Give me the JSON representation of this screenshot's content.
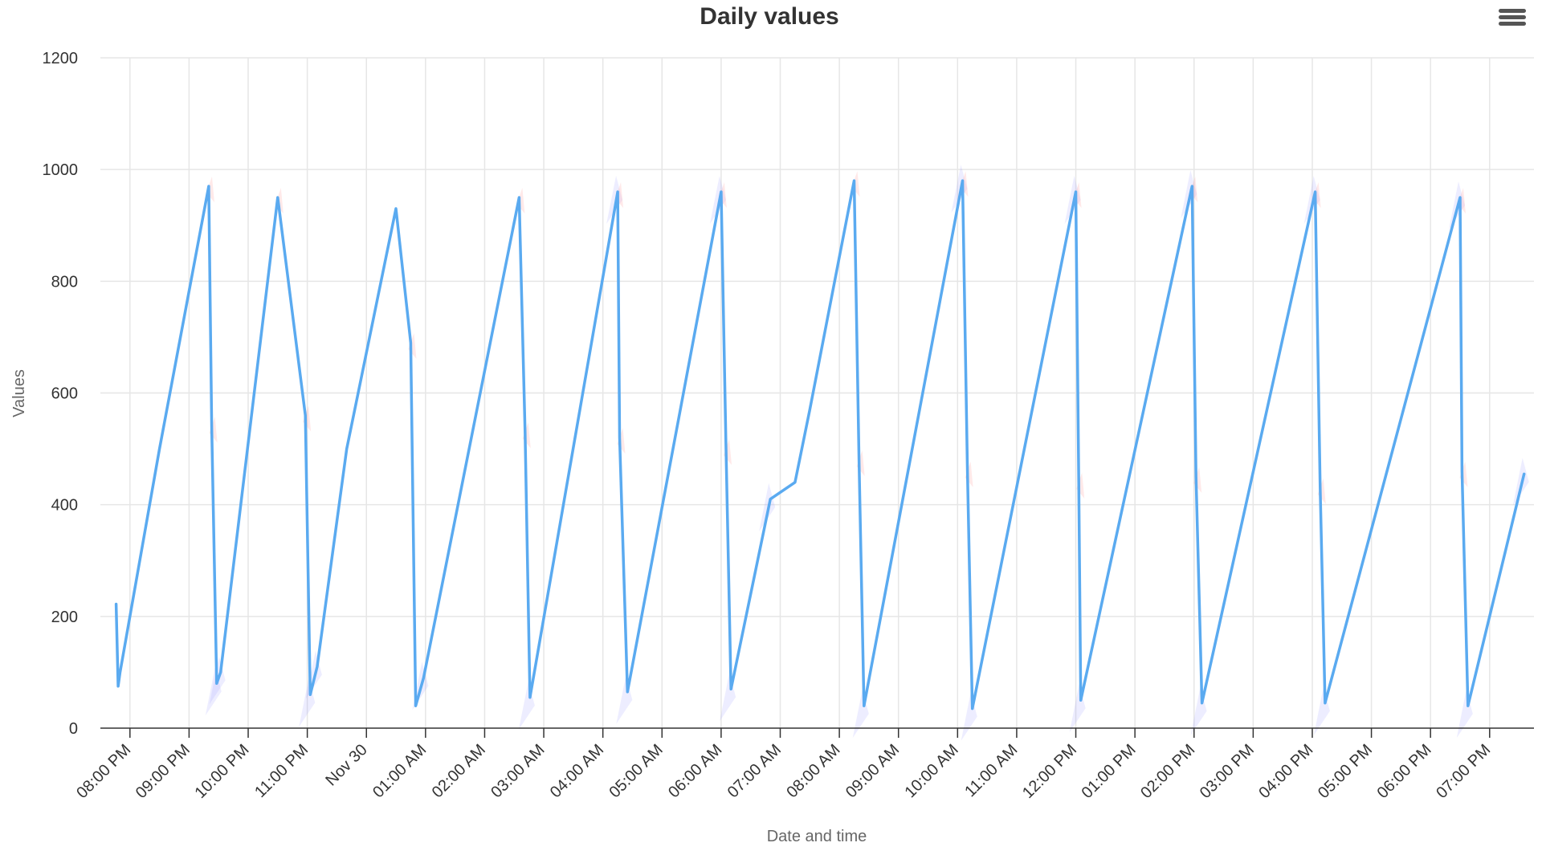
{
  "chart_data": {
    "type": "line",
    "title": "Daily values",
    "xlabel": "Date and time",
    "ylabel": "Values",
    "ylim": [
      0,
      1200
    ],
    "yticks": [
      0,
      200,
      400,
      600,
      800,
      1000,
      1200
    ],
    "xlim": [
      "Nov 29 07:30 PM",
      "Nov 30 07:45 PM"
    ],
    "xtick_labels": [
      "08:00 PM",
      "09:00 PM",
      "10:00 PM",
      "11:00 PM",
      "Nov 30",
      "01:00 AM",
      "02:00 AM",
      "03:00 AM",
      "04:00 AM",
      "05:00 AM",
      "06:00 AM",
      "07:00 AM",
      "08:00 AM",
      "09:00 AM",
      "10:00 AM",
      "11:00 AM",
      "12:00 PM",
      "01:00 PM",
      "02:00 PM",
      "03:00 PM",
      "04:00 PM",
      "05:00 PM",
      "06:00 PM",
      "07:00 PM"
    ],
    "grid": true,
    "series": [
      {
        "color": "#5aaaf0",
        "x": [
          "Nov 29 07:46 PM",
          "Nov 29 07:48 PM",
          "Nov 29 07:50 PM",
          "Nov 29 08:30 PM",
          "Nov 29 09:20 PM",
          "Nov 29 09:23 PM",
          "Nov 29 09:28 PM",
          "Nov 29 09:32 PM",
          "Nov 29 10:30 PM",
          "Nov 29 10:58 PM",
          "Nov 29 11:03 PM",
          "Nov 29 11:10 PM",
          "Nov 29 11:40 PM",
          "Nov 30 12:30 AM",
          "Nov 30 12:45 AM",
          "Nov 30 12:50 AM",
          "Nov 30 12:58 AM",
          "Nov 30 02:35 AM",
          "Nov 30 02:41 AM",
          "Nov 30 02:46 AM",
          "Nov 30 04:15 AM",
          "Nov 30 04:17 AM",
          "Nov 30 04:25 AM",
          "Nov 30 06:00 AM",
          "Nov 30 06:05 AM",
          "Nov 30 06:10 AM",
          "Nov 30 06:50 AM",
          "Nov 30 07:15 AM",
          "Nov 30 07:30 AM",
          "Nov 30 08:15 AM",
          "Nov 30 08:20 AM",
          "Nov 30 08:25 AM",
          "Nov 30 10:05 AM",
          "Nov 30 10:10 AM",
          "Nov 30 10:15 AM",
          "Nov 30 12:00 PM",
          "Nov 30 12:03 PM",
          "Nov 30 12:05 PM",
          "Nov 30 01:58 PM",
          "Nov 30 02:02 PM",
          "Nov 30 02:08 PM",
          "Nov 30 04:03 PM",
          "Nov 30 04:08 PM",
          "Nov 30 04:13 PM",
          "Nov 30 06:30 PM",
          "Nov 30 06:32 PM",
          "Nov 30 06:38 PM",
          "Nov 30 07:35 PM"
        ],
        "values": [
          222,
          75,
          100,
          500,
          970,
          540,
          80,
          100,
          950,
          560,
          60,
          110,
          500,
          930,
          690,
          40,
          90,
          950,
          530,
          55,
          960,
          520,
          65,
          960,
          500,
          70,
          410,
          440,
          570,
          980,
          480,
          40,
          980,
          460,
          35,
          960,
          440,
          50,
          970,
          450,
          45,
          960,
          430,
          45,
          950,
          460,
          40,
          455
        ]
      }
    ]
  },
  "menu": {
    "icon": "hamburger-menu-icon"
  }
}
